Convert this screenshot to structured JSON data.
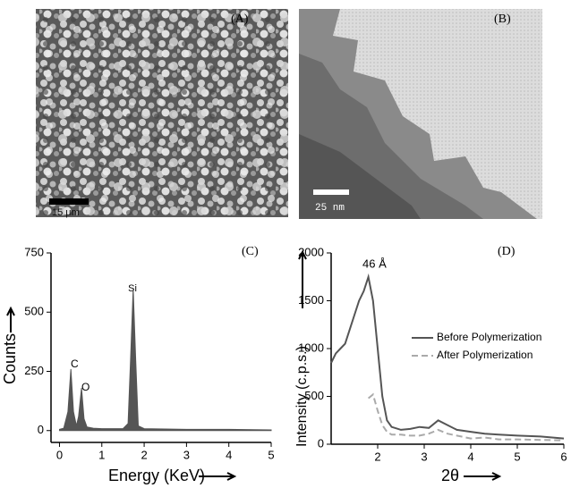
{
  "panels": {
    "a": {
      "label": "(A)",
      "scale_bar": "15 μm"
    },
    "b": {
      "label": "(B)",
      "scale_bar": "25 nm"
    }
  },
  "chart_data": [
    {
      "type": "area",
      "panel_label": "(C)",
      "xlabel": "Energy (KeV)",
      "ylabel": "Counts",
      "color": "#555555",
      "x": [
        0,
        0.1,
        0.2,
        0.27,
        0.33,
        0.4,
        0.45,
        0.52,
        0.58,
        0.65,
        0.8,
        1.0,
        1.5,
        1.62,
        1.68,
        1.74,
        1.8,
        1.86,
        2.0,
        3,
        4,
        5
      ],
      "values": [
        5,
        10,
        80,
        260,
        80,
        20,
        60,
        180,
        50,
        15,
        10,
        8,
        8,
        30,
        300,
        600,
        300,
        20,
        8,
        5,
        5,
        3
      ],
      "annotations": [
        "C",
        "O",
        "Si"
      ],
      "xlim": [
        -0.2,
        5
      ],
      "xticks": [
        0,
        1,
        2,
        3,
        4,
        5
      ],
      "ylim": [
        -50,
        750
      ],
      "yticks": [
        0,
        250,
        500,
        750
      ]
    },
    {
      "type": "line",
      "panel_label": "(D)",
      "xlabel": "2θ",
      "ylabel": "Intensity (c.p.s.)",
      "annotations": [
        "46 Å"
      ],
      "legend": "right",
      "x": [
        1.0,
        1.1,
        1.2,
        1.3,
        1.4,
        1.5,
        1.6,
        1.7,
        1.8,
        1.9,
        2.0,
        2.1,
        2.2,
        2.3,
        2.5,
        2.7,
        2.9,
        3.1,
        3.3,
        3.5,
        3.7,
        4.0,
        4.3,
        4.6,
        5.0,
        5.5,
        6.0
      ],
      "series": [
        {
          "name": "Before Polymerization",
          "color": "#555555",
          "line_style": "solid",
          "values": [
            850,
            950,
            1000,
            1050,
            1200,
            1350,
            1500,
            1600,
            1750,
            1500,
            1000,
            500,
            250,
            180,
            150,
            160,
            180,
            170,
            250,
            200,
            150,
            130,
            110,
            100,
            90,
            80,
            60
          ]
        },
        {
          "name": "After Polymerization",
          "color": "#aaaaaa",
          "line_style": "dashed",
          "values": [
            null,
            null,
            null,
            null,
            null,
            null,
            null,
            null,
            480,
            520,
            350,
            200,
            130,
            100,
            100,
            90,
            90,
            110,
            150,
            110,
            90,
            60,
            70,
            50,
            50,
            45,
            40
          ]
        }
      ],
      "xlim": [
        1,
        6
      ],
      "xticks": [
        2,
        3,
        4,
        5,
        6
      ],
      "ylim": [
        0,
        2000
      ],
      "yticks": [
        0,
        500,
        1000,
        1500,
        2000
      ]
    }
  ]
}
